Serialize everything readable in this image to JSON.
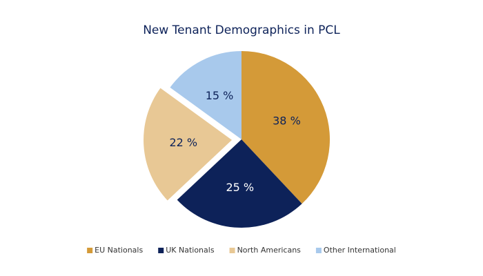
{
  "chart_data": {
    "type": "pie",
    "title": "New Tenant Demographics in PCL",
    "categories": [
      "EU Nationals",
      "UK Nationals",
      "North Americans",
      "Other International"
    ],
    "values": [
      38,
      25,
      22,
      15
    ],
    "value_labels": [
      "38 %",
      "25 %",
      "22 %",
      "15 %"
    ],
    "colors": [
      "#d49a38",
      "#0d2259",
      "#e8c895",
      "#a8c9ec"
    ],
    "explode": [
      false,
      false,
      true,
      false
    ],
    "legend": "bottom"
  }
}
